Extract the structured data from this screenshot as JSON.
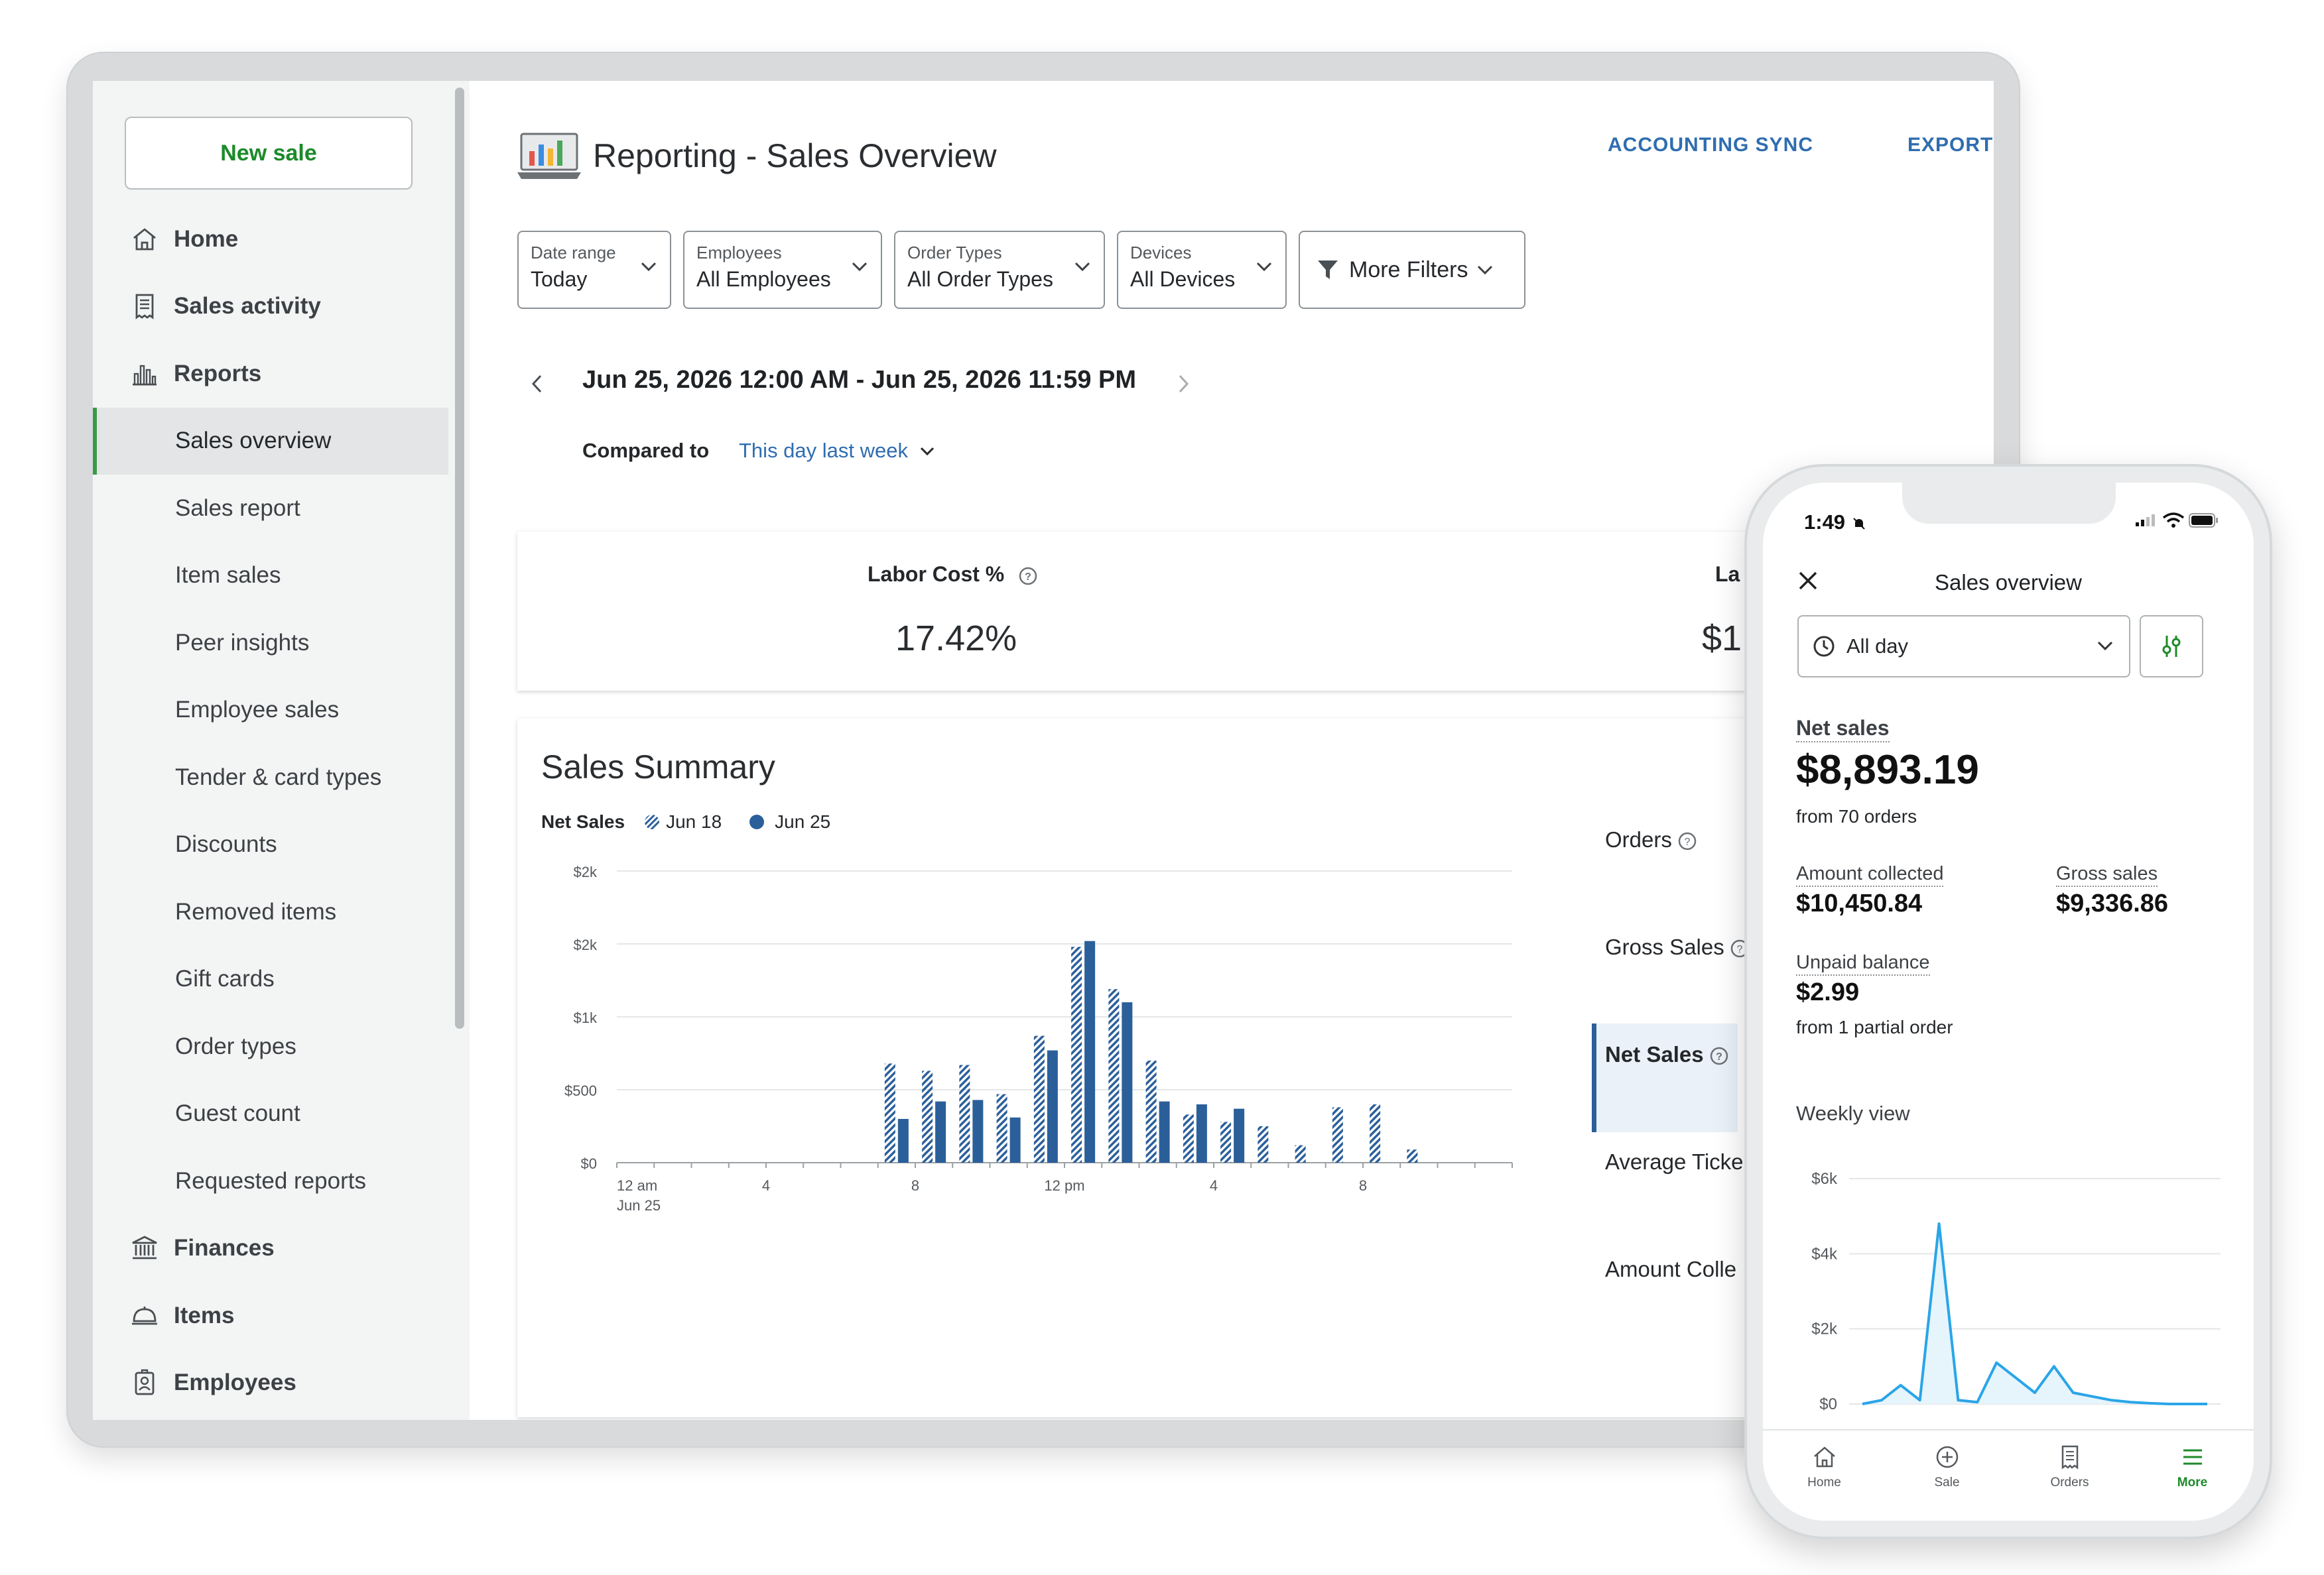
{
  "sidebar": {
    "new_sale": "New sale",
    "items": [
      {
        "label": "Home",
        "type": "top",
        "icon": "home-icon"
      },
      {
        "label": "Sales activity",
        "type": "top",
        "icon": "receipt-icon"
      },
      {
        "label": "Reports",
        "type": "top",
        "icon": "bar-chart-icon"
      },
      {
        "label": "Sales overview",
        "type": "sub",
        "active": true
      },
      {
        "label": "Sales report",
        "type": "sub"
      },
      {
        "label": "Item sales",
        "type": "sub"
      },
      {
        "label": "Peer insights",
        "type": "sub"
      },
      {
        "label": "Employee sales",
        "type": "sub"
      },
      {
        "label": "Tender & card types",
        "type": "sub"
      },
      {
        "label": "Discounts",
        "type": "sub"
      },
      {
        "label": "Removed items",
        "type": "sub"
      },
      {
        "label": "Gift cards",
        "type": "sub"
      },
      {
        "label": "Order types",
        "type": "sub"
      },
      {
        "label": "Guest count",
        "type": "sub"
      },
      {
        "label": "Requested reports",
        "type": "sub"
      },
      {
        "label": "Finances",
        "type": "top",
        "icon": "bank-icon"
      },
      {
        "label": "Items",
        "type": "top",
        "icon": "cloche-icon"
      },
      {
        "label": "Employees",
        "type": "top",
        "icon": "id-badge-icon"
      }
    ]
  },
  "header": {
    "title": "Reporting - Sales Overview",
    "accounting_sync": "ACCOUNTING SYNC",
    "export": "EXPORT"
  },
  "filters": {
    "date_range": {
      "label": "Date range",
      "value": "Today"
    },
    "employees": {
      "label": "Employees",
      "value": "All Employees"
    },
    "order_types": {
      "label": "Order Types",
      "value": "All Order Types"
    },
    "devices": {
      "label": "Devices",
      "value": "All Devices"
    },
    "more": "More Filters"
  },
  "date_range_text": "Jun 25, 2026 12:00 AM - Jun 25, 2026 11:59 PM",
  "compared": {
    "label": "Compared to",
    "value": "This day last week"
  },
  "kpis": {
    "labor_cost_label": "Labor Cost %",
    "labor_cost_value": "17.42%",
    "second_label": "La",
    "second_value": "$1"
  },
  "sales_summary": {
    "title": "Sales Summary",
    "legend_title": "Net Sales",
    "legend_prev": "Jun 18",
    "legend_curr": "Jun 25",
    "metrics": [
      "Orders",
      "Gross Sales",
      "Net Sales",
      "Average Ticke",
      "Amount Colle"
    ],
    "selected_metric": "Net Sales"
  },
  "chart_data": [
    {
      "type": "bar",
      "title": "Net Sales",
      "ylabels": [
        "$0",
        "$500",
        "$1k",
        "$2k",
        "$2k"
      ],
      "xlabels": [
        "12 am",
        "4",
        "8",
        "12 pm",
        "4",
        "8"
      ],
      "x_sub_label": "Jun 25",
      "categories": [
        "0",
        "1",
        "2",
        "3",
        "4",
        "5",
        "6",
        "7",
        "8",
        "9",
        "10",
        "11",
        "12",
        "13",
        "14",
        "15",
        "16",
        "17",
        "18",
        "19",
        "20",
        "21",
        "22",
        "23"
      ],
      "series": [
        {
          "name": "Jun 18",
          "values": [
            0,
            0,
            0,
            0,
            0,
            0,
            0,
            680,
            630,
            670,
            470,
            870,
            1480,
            1190,
            700,
            330,
            280,
            250,
            120,
            380,
            400,
            90,
            0,
            0
          ]
        },
        {
          "name": "Jun 25",
          "values": [
            0,
            0,
            0,
            0,
            0,
            0,
            0,
            300,
            420,
            430,
            310,
            770,
            1520,
            1100,
            420,
            400,
            370,
            0,
            0,
            0,
            0,
            0,
            0,
            0
          ]
        }
      ],
      "ylim": [
        0,
        2000
      ]
    },
    {
      "type": "area",
      "title": "Weekly view",
      "ylabels": [
        "$0",
        "$2k",
        "$4k",
        "$6k"
      ],
      "x": [
        0,
        1,
        2,
        3,
        4,
        5,
        6,
        7,
        8,
        9,
        10,
        11,
        12,
        13,
        14,
        15,
        16,
        17,
        18
      ],
      "values": [
        0,
        100,
        500,
        100,
        4800,
        100,
        50,
        1100,
        700,
        300,
        1000,
        300,
        200,
        100,
        50,
        20,
        0,
        0,
        0
      ],
      "ylim": [
        0,
        6000
      ]
    }
  ],
  "phone": {
    "time": "1:49",
    "title": "Sales overview",
    "period": "All day",
    "net_sales_label": "Net sales",
    "net_sales_value": "$8,893.19",
    "net_sales_sub": "from 70 orders",
    "amount_collected_label": "Amount collected",
    "amount_collected_value": "$10,450.84",
    "gross_sales_label": "Gross sales",
    "gross_sales_value": "$9,336.86",
    "unpaid_label": "Unpaid balance",
    "unpaid_value": "$2.99",
    "unpaid_sub": "from 1 partial order",
    "weekly_view": "Weekly view",
    "tabs": [
      "Home",
      "Sale",
      "Orders",
      "More"
    ]
  },
  "colors": {
    "accent_green": "#1d8a2a",
    "link_blue": "#2f6db0",
    "bar_blue": "#2b5f9a",
    "line_blue": "#2aa5e8"
  }
}
